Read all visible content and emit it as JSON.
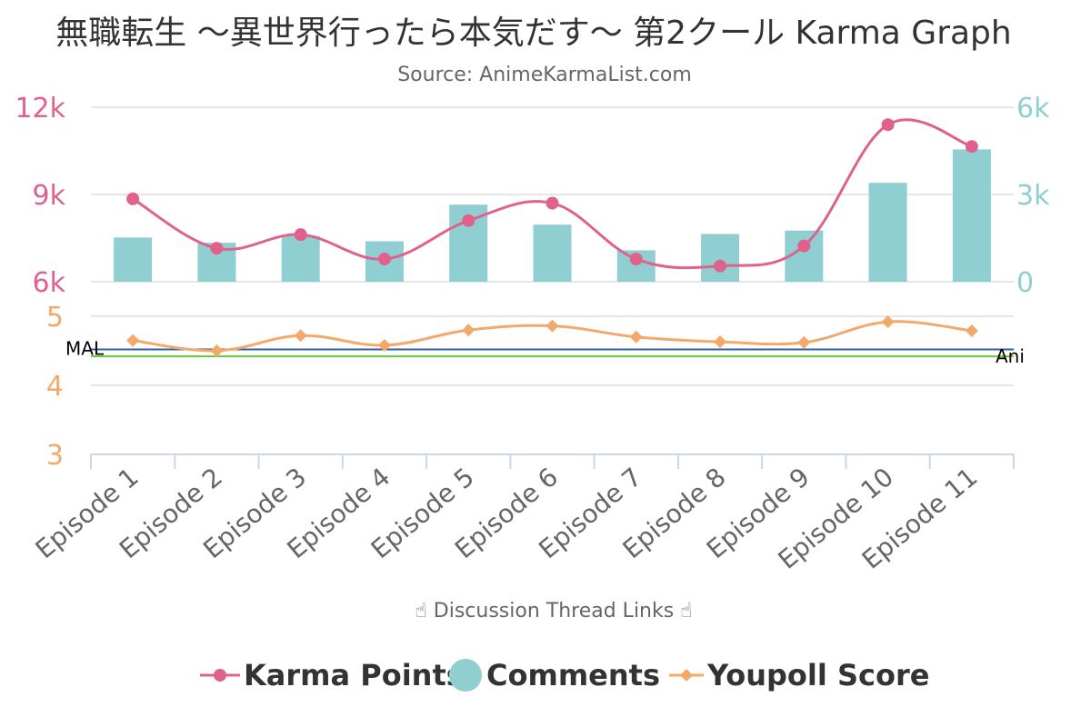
{
  "chart_data": {
    "type": "combo",
    "title": "無職転生 ～異世界行ったら本気だす～ 第2クール Karma Graph",
    "subtitle": "Source: AnimeKarmaList.com",
    "xlabel": "☝ Discussion Thread Links ☝",
    "categories": [
      "Episode 1",
      "Episode 2",
      "Episode 3",
      "Episode 4",
      "Episode 5",
      "Episode 6",
      "Episode 7",
      "Episode 8",
      "Episode 9",
      "Episode 10",
      "Episode 11"
    ],
    "karma_axis": {
      "min": 6000,
      "max": 12000,
      "ticks": [
        "6k",
        "9k",
        "12k"
      ],
      "tick_values": [
        6000,
        9000,
        12000
      ]
    },
    "comments_axis": {
      "min": 0,
      "max": 6000,
      "ticks": [
        "0",
        "3k",
        "6k"
      ],
      "tick_values": [
        0,
        3000,
        6000
      ]
    },
    "youpoll_axis": {
      "min": 3,
      "max": 5,
      "ticks": [
        "3",
        "4",
        "5"
      ],
      "tick_values": [
        3,
        4,
        5
      ]
    },
    "series": [
      {
        "name": "Karma Points",
        "type": "line",
        "axis": "karma",
        "color": "#e0628c",
        "values": [
          8850,
          7150,
          7620,
          6780,
          8100,
          8700,
          6780,
          6540,
          7230,
          11400,
          10650
        ]
      },
      {
        "name": "Comments",
        "type": "bar",
        "axis": "comments",
        "color": "#8fcfd1",
        "values": [
          1520,
          1340,
          1570,
          1390,
          2650,
          1960,
          1080,
          1640,
          1760,
          3400,
          4550
        ]
      },
      {
        "name": "Youpoll Score",
        "type": "line",
        "axis": "youpoll",
        "color": "#f4a96b",
        "values": [
          4.65,
          4.5,
          4.72,
          4.58,
          4.8,
          4.86,
          4.7,
          4.63,
          4.62,
          4.92,
          4.79
        ]
      }
    ],
    "reference_lines": [
      {
        "label": "MAL",
        "value": 4.52,
        "color": "#2e5fa3"
      },
      {
        "label": "Ani",
        "value": 4.42,
        "color": "#66cc33"
      }
    ],
    "legend": {
      "position": "bottom",
      "items": [
        "Karma Points",
        "Comments",
        "Youpoll Score"
      ]
    },
    "grid": true
  }
}
